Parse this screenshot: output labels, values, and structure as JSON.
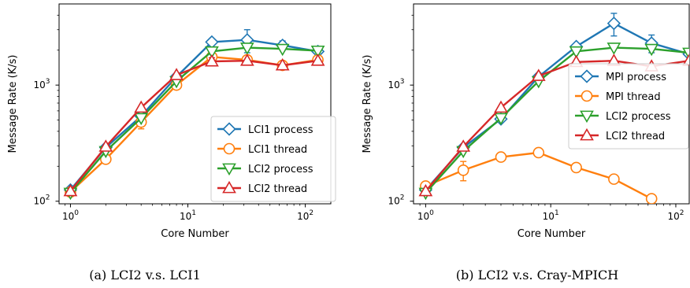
{
  "chart_data": [
    {
      "type": "line",
      "caption": "(a) LCI2 v.s. LCI1",
      "xlabel": "Core Number",
      "ylabel": "Message Rate (K/s)",
      "xscale": "log",
      "yscale": "log",
      "xlim": [
        0.8,
        165
      ],
      "ylim": [
        95,
        5000
      ],
      "xticks": [
        {
          "value": 1,
          "base": "10",
          "exp": "0"
        },
        {
          "value": 10,
          "base": "10",
          "exp": "1"
        },
        {
          "value": 100,
          "base": "10",
          "exp": "2"
        }
      ],
      "yticks": [
        {
          "value": 100,
          "base": "10",
          "exp": "2"
        },
        {
          "value": 1000,
          "base": "10",
          "exp": "3"
        }
      ],
      "legend_position": "lower-right",
      "series": [
        {
          "name": "LCI1 process",
          "color": "#1f77b4",
          "marker": "diamond",
          "x": [
            1,
            2,
            4,
            8,
            16,
            32,
            64,
            128
          ],
          "y": [
            125,
            290,
            540,
            1180,
            2350,
            2450,
            2200,
            1950
          ],
          "err": [
            0,
            0,
            0,
            0,
            0,
            550,
            200,
            0
          ]
        },
        {
          "name": "LCI1 thread",
          "color": "#ff7f0e",
          "marker": "circle",
          "x": [
            1,
            2,
            4,
            8,
            16,
            32,
            64,
            128
          ],
          "y": [
            120,
            230,
            480,
            1000,
            1750,
            1650,
            1480,
            1650
          ],
          "err": [
            0,
            0,
            60,
            0,
            0,
            0,
            0,
            0
          ]
        },
        {
          "name": "LCI2 process",
          "color": "#2ca02c",
          "marker": "triangle-down",
          "x": [
            1,
            2,
            4,
            8,
            16,
            32,
            64,
            128
          ],
          "y": [
            118,
            270,
            520,
            1080,
            1950,
            2100,
            2050,
            1980
          ],
          "err": [
            0,
            0,
            0,
            0,
            0,
            0,
            0,
            0
          ]
        },
        {
          "name": "LCI2 thread",
          "color": "#d62728",
          "marker": "triangle-up",
          "x": [
            1,
            2,
            4,
            8,
            16,
            32,
            64,
            128
          ],
          "y": [
            122,
            295,
            640,
            1220,
            1600,
            1620,
            1480,
            1620
          ],
          "err": [
            0,
            0,
            0,
            0,
            120,
            0,
            0,
            0
          ]
        }
      ]
    },
    {
      "type": "line",
      "caption": "(b) LCI2 v.s. Cray-MPICH",
      "xlabel": "Core Number",
      "ylabel": "Message Rate (K/s)",
      "xscale": "log",
      "yscale": "log",
      "xlim": [
        0.8,
        128
      ],
      "ylim": [
        95,
        5000
      ],
      "xticks": [
        {
          "value": 1,
          "base": "10",
          "exp": "0"
        },
        {
          "value": 10,
          "base": "10",
          "exp": "1"
        },
        {
          "value": 100,
          "base": "10",
          "exp": "2"
        }
      ],
      "yticks": [
        {
          "value": 100,
          "base": "10",
          "exp": "2"
        },
        {
          "value": 1000,
          "base": "10",
          "exp": "3"
        }
      ],
      "legend_position": "upper-right",
      "series": [
        {
          "name": "MPI process",
          "color": "#1f77b4",
          "marker": "diamond",
          "x": [
            1,
            2,
            4,
            8,
            16,
            32,
            64,
            128
          ],
          "y": [
            125,
            290,
            510,
            1180,
            2150,
            3400,
            2300,
            1850
          ],
          "err": [
            0,
            0,
            0,
            0,
            0,
            750,
            400,
            0
          ]
        },
        {
          "name": "MPI thread",
          "color": "#ff7f0e",
          "marker": "circle",
          "x": [
            1,
            2,
            4,
            8,
            16,
            32,
            64
          ],
          "y": [
            135,
            185,
            240,
            262,
            195,
            155,
            105
          ],
          "err": [
            0,
            35,
            0,
            0,
            0,
            0,
            0
          ]
        },
        {
          "name": "LCI2 process",
          "color": "#2ca02c",
          "marker": "triangle-down",
          "x": [
            1,
            2,
            4,
            8,
            16,
            32,
            64,
            128
          ],
          "y": [
            118,
            270,
            520,
            1080,
            1950,
            2100,
            2050,
            1900
          ],
          "err": [
            0,
            0,
            0,
            0,
            0,
            0,
            0,
            0
          ]
        },
        {
          "name": "LCI2 thread",
          "color": "#d62728",
          "marker": "triangle-up",
          "x": [
            1,
            2,
            4,
            8,
            16,
            32,
            64,
            128
          ],
          "y": [
            122,
            295,
            640,
            1200,
            1580,
            1620,
            1450,
            1620
          ],
          "err": [
            0,
            0,
            0,
            0,
            0,
            0,
            0,
            0
          ]
        }
      ]
    }
  ]
}
